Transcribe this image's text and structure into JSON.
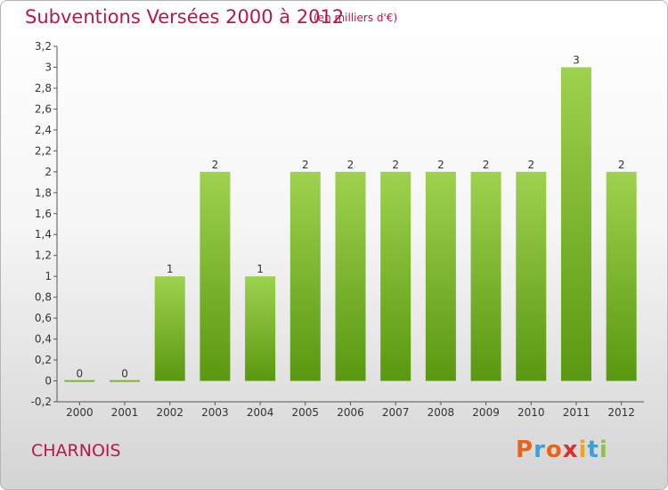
{
  "header": {
    "title": "Subventions Versées 2000 à 2012",
    "unit": "(en milliers d'€)"
  },
  "footer": {
    "commune": "CHARNOIS",
    "logo_text": "Proxiti",
    "logo_colors": [
      "#e8641a",
      "#3aa0d8",
      "#e8641a",
      "#d8312c",
      "#f2a51a",
      "#3aa0d8",
      "#8cc63f"
    ]
  },
  "chart_data": {
    "type": "bar",
    "title": "Subventions Versées 2000 à 2012",
    "subtitle": "(en milliers d'€)",
    "xlabel": "",
    "ylabel": "",
    "categories": [
      "2000",
      "2001",
      "2002",
      "2003",
      "2004",
      "2005",
      "2006",
      "2007",
      "2008",
      "2009",
      "2010",
      "2011",
      "2012"
    ],
    "values": [
      0,
      0,
      1,
      2,
      1,
      2,
      2,
      2,
      2,
      2,
      2,
      3,
      2
    ],
    "data_labels": [
      "0",
      "0",
      "1",
      "2",
      "1",
      "2",
      "2",
      "2",
      "2",
      "2",
      "2",
      "3",
      "2"
    ],
    "ylim": [
      -0.2,
      3.2
    ],
    "yticks": [
      -0.2,
      0,
      0.2,
      0.4,
      0.6,
      0.8,
      1,
      1.2,
      1.4,
      1.6,
      1.8,
      2,
      2.2,
      2.4,
      2.6,
      2.8,
      3,
      3.2
    ],
    "ytick_labels": [
      "-0,2",
      "0",
      "0,2",
      "0,4",
      "0,6",
      "0,8",
      "1",
      "1,2",
      "1,4",
      "1,6",
      "1,8",
      "2",
      "2,2",
      "2,4",
      "2,6",
      "2,8",
      "3",
      "3,2"
    ],
    "grid": false,
    "legend": "none",
    "bar_color_top": "#9ed24e",
    "bar_color_bottom": "#5a9810"
  }
}
